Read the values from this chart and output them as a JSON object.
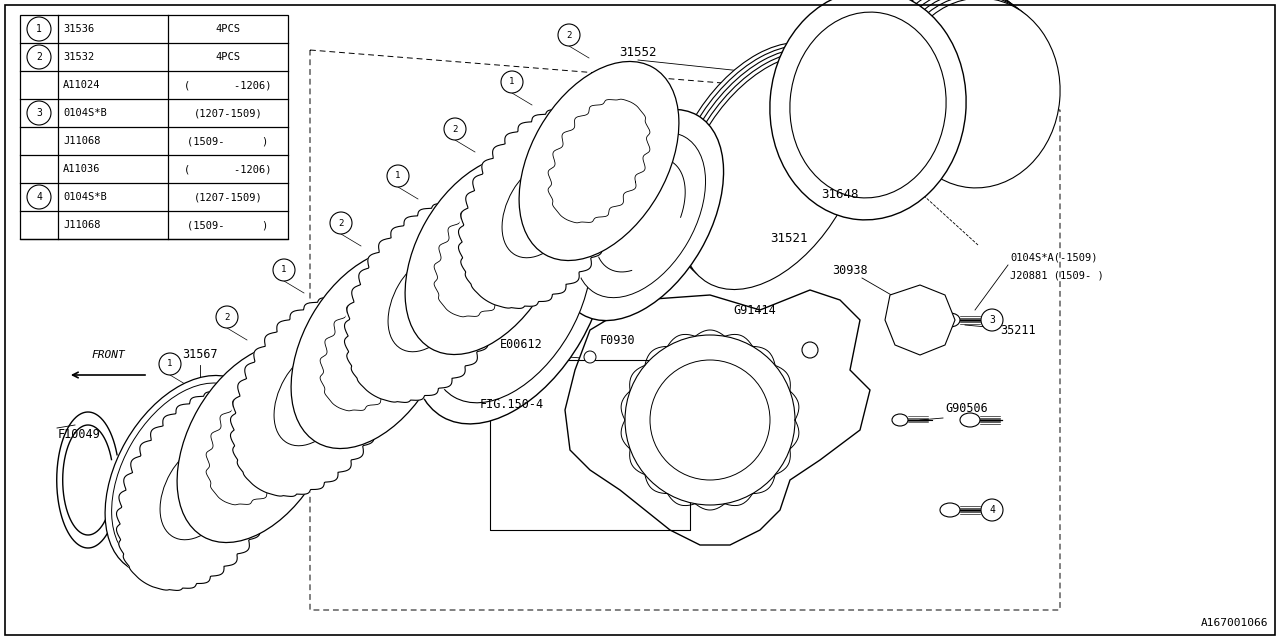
{
  "bg_color": "#ffffff",
  "line_color": "#000000",
  "fig_width": 12.8,
  "fig_height": 6.4,
  "part_id": "A167001066",
  "table_rows": [
    {
      "num": "1",
      "part": "31536",
      "qty": "4PCS"
    },
    {
      "num": "2",
      "part": "31532",
      "qty": "4PCS"
    },
    {
      "num": "",
      "part": "A11024",
      "qty": "(       -1206)"
    },
    {
      "num": "3",
      "part": "0104S*B",
      "qty": "(1207-1509)"
    },
    {
      "num": "",
      "part": "J11068",
      "qty": "(1509-      )"
    },
    {
      "num": "",
      "part": "A11036",
      "qty": "(       -1206)"
    },
    {
      "num": "4",
      "part": "0104S*B",
      "qty": "(1207-1509)"
    },
    {
      "num": "",
      "part": "J11068",
      "qty": "(1509-      )"
    }
  ]
}
